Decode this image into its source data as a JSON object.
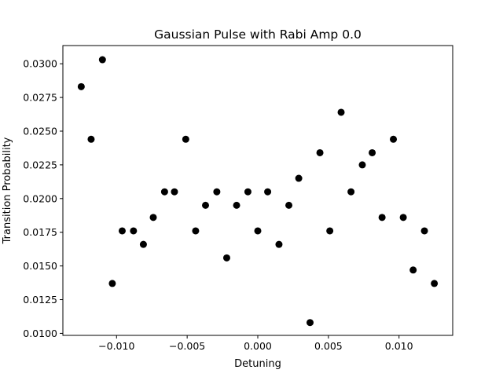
{
  "chart_data": {
    "type": "scatter",
    "title": "Gaussian Pulse with Rabi Amp 0.0",
    "xlabel": "Detuning",
    "ylabel": "Transition Probability",
    "xlim": [
      -0.0138,
      0.0138
    ],
    "ylim": [
      0.00985,
      0.03135
    ],
    "xticks": [
      -0.01,
      -0.005,
      0.0,
      0.005,
      0.01
    ],
    "xtick_labels": [
      "−0.010",
      "−0.005",
      "0.000",
      "0.005",
      "0.010"
    ],
    "yticks": [
      0.01,
      0.0125,
      0.015,
      0.0175,
      0.02,
      0.0225,
      0.025,
      0.0275,
      0.03
    ],
    "ytick_labels": [
      "0.0100",
      "0.0125",
      "0.0150",
      "0.0175",
      "0.0200",
      "0.0225",
      "0.0250",
      "0.0275",
      "0.0300"
    ],
    "marker_color": "#000000",
    "x": [
      -0.0125,
      -0.0118,
      -0.011,
      -0.0103,
      -0.0096,
      -0.0088,
      -0.0081,
      -0.0074,
      -0.0066,
      -0.0059,
      -0.0051,
      -0.0044,
      -0.0037,
      -0.0029,
      -0.0022,
      -0.0015,
      -0.0007,
      0.0,
      0.0007,
      0.0015,
      0.0022,
      0.0029,
      0.0037,
      0.0044,
      0.0051,
      0.0059,
      0.0066,
      0.0074,
      0.0081,
      0.0088,
      0.0096,
      0.0103,
      0.011,
      0.0118,
      0.0125
    ],
    "y": [
      0.0283,
      0.0244,
      0.0303,
      0.0137,
      0.0176,
      0.0176,
      0.0166,
      0.0186,
      0.0205,
      0.0205,
      0.0244,
      0.0176,
      0.0195,
      0.0205,
      0.0156,
      0.0195,
      0.0205,
      0.0176,
      0.0205,
      0.0166,
      0.0195,
      0.0215,
      0.0108,
      0.0234,
      0.0176,
      0.0264,
      0.0205,
      0.0225,
      0.0234,
      0.0186,
      0.0244,
      0.0186,
      0.0147,
      0.0176,
      0.0137
    ]
  }
}
